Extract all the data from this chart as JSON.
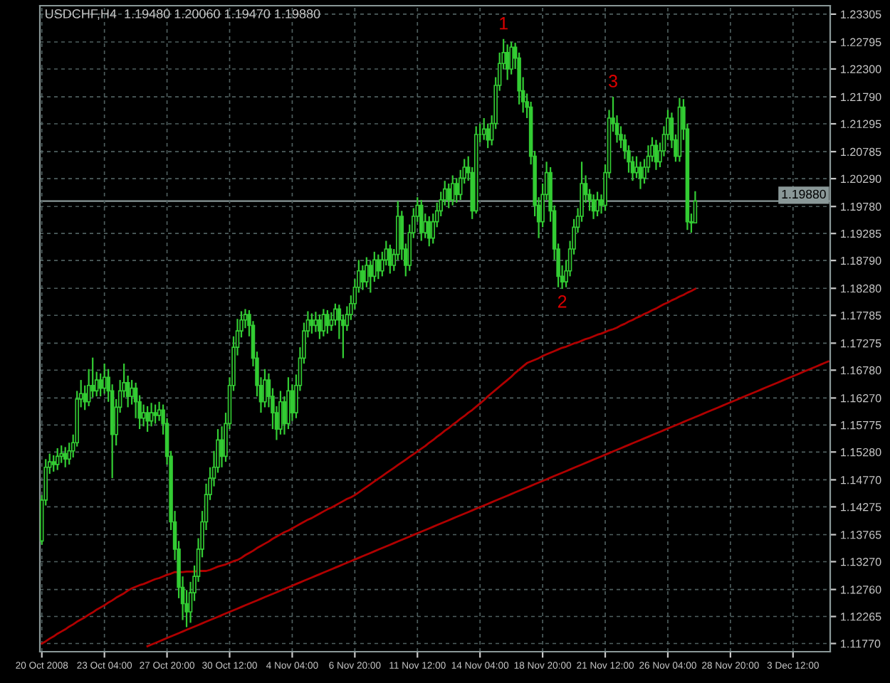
{
  "chart_data": {
    "type": "candlestick",
    "title": "USDCHF,H4  1.19480 1.20060 1.19470 1.19880",
    "color": "#33cc33",
    "categories": [
      "20 Oct 2008",
      null,
      null,
      null,
      null,
      null,
      null,
      null,
      null,
      null,
      null,
      null,
      null,
      null,
      null,
      null,
      "23 Oct 04:00",
      null,
      null,
      null,
      null,
      null,
      null,
      null,
      null,
      null,
      null,
      null,
      null,
      null,
      null,
      null,
      "27 Oct 20:00",
      null,
      null,
      null,
      null,
      null,
      null,
      null,
      null,
      null,
      null,
      null,
      null,
      null,
      null,
      null,
      "30 Oct 12:00",
      null,
      null,
      null,
      null,
      null,
      null,
      null,
      null,
      null,
      null,
      null,
      null,
      null,
      null,
      null,
      "4 Nov 04:00",
      null,
      null,
      null,
      null,
      null,
      null,
      null,
      null,
      null,
      null,
      null,
      null,
      null,
      null,
      null,
      "6 Nov 20:00",
      null,
      null,
      null,
      null,
      null,
      null,
      null,
      null,
      null,
      null,
      null,
      null,
      null,
      null,
      null,
      "11 Nov 12:00",
      null,
      null,
      null,
      null,
      null,
      null,
      null,
      null,
      null,
      null,
      null,
      null,
      null,
      null,
      null,
      "14 Nov 04:00",
      null,
      null,
      null,
      null,
      null,
      null,
      null,
      null,
      null,
      null,
      null,
      null,
      null,
      null,
      null,
      "18 Nov 20:00",
      null,
      null,
      null,
      null,
      null,
      null,
      null,
      null,
      null,
      null,
      null,
      null,
      null,
      null,
      null,
      "21 Nov 12:00",
      null,
      null,
      null,
      null,
      null,
      null,
      null,
      null,
      null,
      null,
      null,
      null,
      null,
      null,
      null,
      "26 Nov 04:00",
      null,
      null,
      null,
      null,
      null,
      null,
      null,
      null,
      null,
      null,
      null,
      null,
      null,
      null,
      null,
      "28 Nov 20:00",
      null,
      null,
      null,
      null,
      null,
      null,
      null,
      null,
      null,
      null,
      null,
      null,
      null,
      null,
      null,
      "3 Dec 12:00",
      null,
      null,
      null,
      null,
      null,
      null,
      null,
      null,
      null
    ],
    "ohlc": [
      [
        1.1365,
        1.1449,
        1.1358,
        1.144
      ],
      [
        1.144,
        1.1515,
        1.143,
        1.15
      ],
      [
        1.15,
        1.1525,
        1.1488,
        1.151
      ],
      [
        1.151,
        1.1522,
        1.1492,
        1.1505
      ],
      [
        1.1505,
        1.1535,
        1.1495,
        1.152
      ],
      [
        1.152,
        1.154,
        1.1508,
        1.1525
      ],
      [
        1.1525,
        1.1537,
        1.15,
        1.1515
      ],
      [
        1.1515,
        1.1545,
        1.1505,
        1.153
      ],
      [
        1.153,
        1.156,
        1.1518,
        1.1545
      ],
      [
        1.1545,
        1.164,
        1.1538,
        1.1625
      ],
      [
        1.1625,
        1.166,
        1.161,
        1.1635
      ],
      [
        1.1635,
        1.165,
        1.1605,
        1.162
      ],
      [
        1.162,
        1.168,
        1.1612,
        1.165
      ],
      [
        1.165,
        1.1701,
        1.1628,
        1.164
      ],
      [
        1.164,
        1.1675,
        1.163,
        1.166
      ],
      [
        1.166,
        1.1672,
        1.163,
        1.1645
      ],
      [
        1.1645,
        1.169,
        1.1635,
        1.1665
      ],
      [
        1.1665,
        1.168,
        1.162,
        1.164
      ],
      [
        1.164,
        1.1652,
        1.148,
        1.156
      ],
      [
        1.156,
        1.1625,
        1.154,
        1.161
      ],
      [
        1.161,
        1.166,
        1.16,
        1.164
      ],
      [
        1.164,
        1.169,
        1.1628,
        1.1655
      ],
      [
        1.1655,
        1.1668,
        1.161,
        1.163
      ],
      [
        1.163,
        1.166,
        1.1615,
        1.1645
      ],
      [
        1.1645,
        1.1655,
        1.159,
        1.162
      ],
      [
        1.162,
        1.1632,
        1.157,
        1.159
      ],
      [
        1.159,
        1.1615,
        1.1575,
        1.16
      ],
      [
        1.16,
        1.1612,
        1.1565,
        1.1585
      ],
      [
        1.1585,
        1.1618,
        1.1575,
        1.16
      ],
      [
        1.16,
        1.1615,
        1.158,
        1.1595
      ],
      [
        1.1595,
        1.162,
        1.1585,
        1.1605
      ],
      [
        1.1605,
        1.1615,
        1.156,
        1.158
      ],
      [
        1.158,
        1.159,
        1.1505,
        1.152
      ],
      [
        1.152,
        1.153,
        1.1385,
        1.14
      ],
      [
        1.14,
        1.142,
        1.133,
        1.135
      ],
      [
        1.135,
        1.1365,
        1.126,
        1.128
      ],
      [
        1.128,
        1.13,
        1.122,
        1.125
      ],
      [
        1.125,
        1.1275,
        1.1207,
        1.1235
      ],
      [
        1.1235,
        1.129,
        1.1215,
        1.127
      ],
      [
        1.127,
        1.132,
        1.1255,
        1.13
      ],
      [
        1.13,
        1.137,
        1.129,
        1.135
      ],
      [
        1.135,
        1.142,
        1.1335,
        1.14
      ],
      [
        1.14,
        1.147,
        1.1385,
        1.145
      ],
      [
        1.145,
        1.15,
        1.144,
        1.148
      ],
      [
        1.148,
        1.153,
        1.1465,
        1.15
      ],
      [
        1.15,
        1.157,
        1.149,
        1.155
      ],
      [
        1.155,
        1.1575,
        1.15,
        1.152
      ],
      [
        1.152,
        1.16,
        1.151,
        1.158
      ],
      [
        1.158,
        1.1665,
        1.157,
        1.165
      ],
      [
        1.165,
        1.174,
        1.164,
        1.172
      ],
      [
        1.172,
        1.1772,
        1.1705,
        1.175
      ],
      [
        1.175,
        1.1786,
        1.1738,
        1.177
      ],
      [
        1.177,
        1.179,
        1.1755,
        1.178
      ],
      [
        1.178,
        1.1788,
        1.174,
        1.176
      ],
      [
        1.176,
        1.1768,
        1.1685,
        1.17
      ],
      [
        1.17,
        1.1712,
        1.163,
        1.165
      ],
      [
        1.165,
        1.1665,
        1.16,
        1.162
      ],
      [
        1.162,
        1.168,
        1.161,
        1.166
      ],
      [
        1.166,
        1.1672,
        1.161,
        1.163
      ],
      [
        1.163,
        1.1645,
        1.157,
        1.16
      ],
      [
        1.16,
        1.1612,
        1.155,
        1.157
      ],
      [
        1.157,
        1.164,
        1.156,
        1.162
      ],
      [
        1.162,
        1.163,
        1.156,
        1.158
      ],
      [
        1.158,
        1.1665,
        1.157,
        1.164
      ],
      [
        1.164,
        1.1652,
        1.1585,
        1.16
      ],
      [
        1.16,
        1.167,
        1.159,
        1.165
      ],
      [
        1.165,
        1.172,
        1.164,
        1.17
      ],
      [
        1.17,
        1.1765,
        1.169,
        1.175
      ],
      [
        1.175,
        1.1786,
        1.1738,
        1.177
      ],
      [
        1.177,
        1.1782,
        1.1745,
        1.176
      ],
      [
        1.176,
        1.1785,
        1.1748,
        1.177
      ],
      [
        1.177,
        1.178,
        1.1735,
        1.175
      ],
      [
        1.175,
        1.179,
        1.174,
        1.178
      ],
      [
        1.178,
        1.1788,
        1.1745,
        1.176
      ],
      [
        1.176,
        1.1784,
        1.175,
        1.177
      ],
      [
        1.177,
        1.18,
        1.176,
        1.179
      ],
      [
        1.179,
        1.1798,
        1.1735,
        1.177
      ],
      [
        1.177,
        1.178,
        1.17,
        1.176
      ],
      [
        1.176,
        1.1795,
        1.175,
        1.178
      ],
      [
        1.178,
        1.1815,
        1.177,
        1.18
      ],
      [
        1.18,
        1.1845,
        1.179,
        1.183
      ],
      [
        1.183,
        1.188,
        1.182,
        1.186
      ],
      [
        1.186,
        1.187,
        1.1825,
        1.184
      ],
      [
        1.184,
        1.1885,
        1.183,
        1.187
      ],
      [
        1.187,
        1.1878,
        1.182,
        1.185
      ],
      [
        1.185,
        1.1895,
        1.184,
        1.188
      ],
      [
        1.188,
        1.189,
        1.1845,
        1.186
      ],
      [
        1.186,
        1.1895,
        1.185,
        1.188
      ],
      [
        1.188,
        1.1915,
        1.187,
        1.19
      ],
      [
        1.19,
        1.1908,
        1.1855,
        1.187
      ],
      [
        1.187,
        1.19,
        1.186,
        1.189
      ],
      [
        1.189,
        1.1988,
        1.188,
        1.196
      ],
      [
        1.196,
        1.197,
        1.188,
        1.19
      ],
      [
        1.19,
        1.191,
        1.185,
        1.187
      ],
      [
        1.187,
        1.1945,
        1.186,
        1.193
      ],
      [
        1.193,
        1.1975,
        1.192,
        1.196
      ],
      [
        1.196,
        1.1995,
        1.195,
        1.198
      ],
      [
        1.198,
        1.199,
        1.1915,
        1.193
      ],
      [
        1.193,
        1.1965,
        1.192,
        1.195
      ],
      [
        1.195,
        1.196,
        1.1905,
        1.192
      ],
      [
        1.192,
        1.1965,
        1.191,
        1.195
      ],
      [
        1.195,
        1.1985,
        1.194,
        1.197
      ],
      [
        1.197,
        1.2005,
        1.196,
        1.199
      ],
      [
        1.199,
        1.2025,
        1.198,
        1.201
      ],
      [
        1.201,
        1.202,
        1.1975,
        1.199
      ],
      [
        1.199,
        1.2035,
        1.198,
        1.202
      ],
      [
        1.202,
        1.203,
        1.1985,
        1.2
      ],
      [
        1.2,
        1.2045,
        1.199,
        1.203
      ],
      [
        1.203,
        1.2065,
        1.202,
        1.205
      ],
      [
        1.205,
        1.207,
        1.2025,
        1.204
      ],
      [
        1.204,
        1.205,
        1.1955,
        1.197
      ],
      [
        1.197,
        1.2125,
        1.1965,
        1.211
      ],
      [
        1.211,
        1.213,
        1.2095,
        1.211
      ],
      [
        1.211,
        1.214,
        1.21,
        1.212
      ],
      [
        1.212,
        1.213,
        1.2085,
        1.21
      ],
      [
        1.21,
        1.2145,
        1.209,
        1.213
      ],
      [
        1.213,
        1.2215,
        1.212,
        1.22
      ],
      [
        1.22,
        1.226,
        1.219,
        1.224
      ],
      [
        1.224,
        1.2285,
        1.223,
        1.226
      ],
      [
        1.226,
        1.2275,
        1.221,
        1.223
      ],
      [
        1.223,
        1.228,
        1.222,
        1.227
      ],
      [
        1.227,
        1.2278,
        1.223,
        1.225
      ],
      [
        1.225,
        1.226,
        1.2165,
        1.219
      ],
      [
        1.219,
        1.2215,
        1.215,
        1.217
      ],
      [
        1.217,
        1.2185,
        1.214,
        1.216
      ],
      [
        1.216,
        1.217,
        1.2055,
        1.207
      ],
      [
        1.207,
        1.208,
        1.196,
        1.198
      ],
      [
        1.198,
        1.1995,
        1.192,
        1.195
      ],
      [
        1.195,
        1.202,
        1.194,
        1.2
      ],
      [
        1.2,
        1.206,
        1.199,
        1.204
      ],
      [
        1.204,
        1.205,
        1.195,
        1.197
      ],
      [
        1.197,
        1.198,
        1.188,
        1.19
      ],
      [
        1.19,
        1.191,
        1.183,
        1.185
      ],
      [
        1.185,
        1.187,
        1.1827,
        1.184
      ],
      [
        1.184,
        1.188,
        1.183,
        1.186
      ],
      [
        1.186,
        1.1915,
        1.185,
        1.19
      ],
      [
        1.19,
        1.1955,
        1.189,
        1.194
      ],
      [
        1.194,
        1.1975,
        1.193,
        1.196
      ],
      [
        1.196,
        1.206,
        1.195,
        1.202
      ],
      [
        1.202,
        1.2035,
        1.1985,
        1.2
      ],
      [
        1.2,
        1.201,
        1.197,
        1.199
      ],
      [
        1.199,
        1.2,
        1.1955,
        1.197
      ],
      [
        1.197,
        1.2005,
        1.196,
        1.199
      ],
      [
        1.199,
        1.2,
        1.1965,
        1.198
      ],
      [
        1.198,
        1.2055,
        1.197,
        1.204
      ],
      [
        1.204,
        1.2155,
        1.203,
        1.214
      ],
      [
        1.214,
        1.2179,
        1.2115,
        1.213
      ],
      [
        1.213,
        1.2145,
        1.2095,
        1.211
      ],
      [
        1.211,
        1.2125,
        1.2085,
        1.21
      ],
      [
        1.21,
        1.211,
        1.2065,
        1.208
      ],
      [
        1.208,
        1.209,
        1.204,
        1.206
      ],
      [
        1.206,
        1.207,
        1.2025,
        1.204
      ],
      [
        1.204,
        1.207,
        1.203,
        1.205
      ],
      [
        1.205,
        1.206,
        1.201,
        1.203
      ],
      [
        1.203,
        1.2065,
        1.202,
        1.205
      ],
      [
        1.205,
        1.209,
        1.204,
        1.207
      ],
      [
        1.207,
        1.2105,
        1.206,
        1.209
      ],
      [
        1.209,
        1.21,
        1.2045,
        1.206
      ],
      [
        1.206,
        1.2095,
        1.205,
        1.208
      ],
      [
        1.208,
        1.2125,
        1.207,
        1.211
      ],
      [
        1.211,
        1.2155,
        1.21,
        1.214
      ],
      [
        1.214,
        1.215,
        1.2085,
        1.21
      ],
      [
        1.21,
        1.211,
        1.206,
        1.207
      ],
      [
        1.207,
        1.2177,
        1.206,
        1.216
      ],
      [
        1.216,
        1.2175,
        1.21,
        1.212
      ],
      [
        1.212,
        1.213,
        1.1935,
        1.195
      ],
      [
        1.195,
        1.1965,
        1.193,
        1.1948
      ],
      [
        1.1948,
        1.2006,
        1.1947,
        1.1988
      ],
      null,
      null,
      null,
      null,
      null,
      null,
      null,
      null,
      null,
      null,
      null,
      null,
      null,
      null,
      null,
      null,
      null,
      null,
      null,
      null,
      null,
      null,
      null,
      null,
      null,
      null,
      null,
      null,
      null,
      null,
      null,
      null,
      null,
      null
    ],
    "series": [
      {
        "type": "line",
        "color": "#b00000",
        "values": [
          1.1177,
          1.1181,
          1.1186,
          1.119,
          1.1195,
          1.1199,
          1.1203,
          1.1208,
          1.1212,
          1.1217,
          1.1221,
          1.1225,
          1.123,
          1.1234,
          1.1239,
          1.1243,
          1.1247,
          1.1252,
          1.1256,
          1.1261,
          1.1265,
          1.1269,
          1.1274,
          1.1278,
          1.1281,
          1.1284,
          1.1286,
          1.1289,
          1.1292,
          1.1295,
          1.1297,
          1.13,
          1.1303,
          1.1305,
          1.1308,
          1.1308,
          1.1308,
          1.1309,
          1.1309,
          1.1309,
          1.131,
          1.131,
          1.131,
          1.1312,
          1.1315,
          1.1318,
          1.132,
          1.1322,
          1.1325,
          1.1328,
          1.133,
          1.1334,
          1.1339,
          1.1343,
          1.1347,
          1.1352,
          1.1356,
          1.136,
          1.1364,
          1.1369,
          1.1373,
          1.1377,
          1.1381,
          1.1384,
          1.1388,
          1.1392,
          1.1396,
          1.14,
          1.1404,
          1.1407,
          1.1411,
          1.1415,
          1.1419,
          1.1423,
          1.1426,
          1.143,
          1.1434,
          1.1438,
          1.1442,
          1.1445,
          1.1449,
          1.1454,
          1.1459,
          1.1464,
          1.1469,
          1.1474,
          1.1479,
          1.1484,
          1.1489,
          1.1494,
          1.1499,
          1.1504,
          1.1509,
          1.1514,
          1.1519,
          1.1524,
          1.1529,
          1.1534,
          1.1539,
          1.1545,
          1.155,
          1.1556,
          1.1561,
          1.1567,
          1.1572,
          1.1578,
          1.1583,
          1.1589,
          1.1594,
          1.16,
          1.1605,
          1.1611,
          1.1617,
          1.1623,
          1.163,
          1.1636,
          1.1642,
          1.1648,
          1.1654,
          1.166,
          1.1666,
          1.1673,
          1.1679,
          1.1685,
          1.1691,
          1.1694,
          1.1697,
          1.17,
          1.1704,
          1.1707,
          1.171,
          1.1713,
          1.1716,
          1.1719,
          1.1721,
          1.1724,
          1.1727,
          1.1729,
          1.1732,
          1.1735,
          1.1737,
          1.174,
          1.1743,
          1.1745,
          1.1748,
          1.1751,
          1.1753,
          1.1756,
          1.176,
          1.1763,
          1.1767,
          1.177,
          1.1774,
          1.1777,
          1.1781,
          1.1784,
          1.1788,
          1.1791,
          1.1795,
          1.1799,
          1.1802,
          1.1806,
          1.1809,
          1.1813,
          1.1816,
          1.182,
          1.1823,
          1.1827,
          null,
          null,
          null,
          null,
          null,
          null,
          null,
          null,
          null,
          null,
          null,
          null,
          null,
          null,
          null,
          null,
          null,
          null,
          null,
          null,
          null,
          null,
          null,
          null,
          null,
          null,
          null,
          null,
          null,
          null,
          null,
          null,
          null,
          null
        ]
      },
      {
        "type": "line",
        "color": "#b00000",
        "values": [
          null,
          null,
          null,
          null,
          null,
          null,
          null,
          null,
          null,
          null,
          null,
          null,
          null,
          null,
          null,
          null,
          null,
          null,
          null,
          null,
          null,
          null,
          null,
          null,
          null,
          null,
          null,
          1.1172,
          1.1175,
          1.1178,
          1.1181,
          1.1184,
          1.1187,
          1.119,
          1.1193,
          1.1196,
          1.1199,
          1.1202,
          1.1205,
          1.1208,
          1.1211,
          1.1214,
          1.1217,
          1.122,
          1.1223,
          1.1226,
          1.1229,
          1.1232,
          1.1235,
          1.1238,
          1.1241,
          1.1244,
          1.1247,
          1.125,
          1.1253,
          1.1256,
          1.1259,
          1.1262,
          1.1265,
          1.1268,
          1.1271,
          1.1274,
          1.1277,
          1.128,
          1.1283,
          1.1286,
          1.1289,
          1.1292,
          1.1295,
          1.1298,
          1.1301,
          1.1304,
          1.1307,
          1.131,
          1.1313,
          1.1316,
          1.1319,
          1.1322,
          1.1325,
          1.1328,
          1.1331,
          1.1334,
          1.1337,
          1.134,
          1.1343,
          1.1346,
          1.1349,
          1.1352,
          1.1355,
          1.1358,
          1.1361,
          1.1364,
          1.1367,
          1.137,
          1.1373,
          1.1376,
          1.1379,
          1.1382,
          1.1385,
          1.1388,
          1.1391,
          1.1394,
          1.1397,
          1.14,
          1.1403,
          1.1406,
          1.1409,
          1.1412,
          1.1415,
          1.1418,
          1.1421,
          1.1424,
          1.1427,
          1.143,
          1.1433,
          1.1436,
          1.1439,
          1.1442,
          1.1445,
          1.1448,
          1.1451,
          1.1454,
          1.1457,
          1.146,
          1.1463,
          1.1466,
          1.1469,
          1.1472,
          1.1475,
          1.1478,
          1.1481,
          1.1484,
          1.1487,
          1.149,
          1.1493,
          1.1496,
          1.1499,
          1.1502,
          1.1505,
          1.1508,
          1.1511,
          1.1514,
          1.1517,
          1.152,
          1.1523,
          1.1526,
          1.1529,
          1.1532,
          1.1535,
          1.1538,
          1.1541,
          1.1544,
          1.1547,
          1.155,
          1.1553,
          1.1556,
          1.1559,
          1.1562,
          1.1565,
          1.1568,
          1.1571,
          1.1574,
          1.1577,
          1.158,
          1.1583,
          1.1586,
          1.1589,
          1.1592,
          1.1595,
          1.1598,
          1.1601,
          1.1604,
          1.1607,
          1.161,
          1.1613,
          1.1616,
          1.1619,
          1.1622,
          1.1625,
          1.1628,
          1.1631,
          1.1634,
          1.1637,
          1.164,
          1.1643,
          1.1646,
          1.1649,
          1.1652,
          1.1655,
          1.1658,
          1.1661,
          1.1664,
          1.1667,
          1.167,
          1.1673,
          1.1676,
          1.1679,
          1.1682,
          1.1685,
          1.1688,
          1.1691,
          1.1694
        ]
      }
    ],
    "ylim": [
      1.1162,
      1.2346
    ],
    "yticks": [
      {
        "value": 1.23305,
        "label": "1.23305"
      },
      {
        "value": 1.22795,
        "label": "1.22795"
      },
      {
        "value": 1.223,
        "label": "1.22300"
      },
      {
        "value": 1.2179,
        "label": "1.21790"
      },
      {
        "value": 1.21295,
        "label": "1.21295"
      },
      {
        "value": 1.20785,
        "label": "1.20785"
      },
      {
        "value": 1.2029,
        "label": "1.20290"
      },
      {
        "value": 1.1978,
        "label": "1.19780"
      },
      {
        "value": 1.19285,
        "label": "1.19285"
      },
      {
        "value": 1.1879,
        "label": "1.18790"
      },
      {
        "value": 1.1828,
        "label": "1.18280"
      },
      {
        "value": 1.17785,
        "label": "1.17785"
      },
      {
        "value": 1.17275,
        "label": "1.17275"
      },
      {
        "value": 1.1678,
        "label": "1.16780"
      },
      {
        "value": 1.1627,
        "label": "1.16270"
      },
      {
        "value": 1.15775,
        "label": "1.15775"
      },
      {
        "value": 1.1528,
        "label": "1.15280"
      },
      {
        "value": 1.1477,
        "label": "1.14770"
      },
      {
        "value": 1.14275,
        "label": "1.14275"
      },
      {
        "value": 1.13765,
        "label": "1.13765"
      },
      {
        "value": 1.1327,
        "label": "1.13270"
      },
      {
        "value": 1.1276,
        "label": "1.12760"
      },
      {
        "value": 1.12265,
        "label": "1.12265"
      },
      {
        "value": 1.1177,
        "label": "1.11770"
      }
    ],
    "ref_lines": [
      {
        "axis": "y",
        "value": 1.1988,
        "label": "1.19880",
        "color": "#8a9898"
      }
    ],
    "annotations": [
      {
        "text": "1",
        "y": 1.2285
      },
      {
        "text": "2",
        "y": 1.1827
      },
      {
        "text": "3",
        "y": 1.2179
      }
    ],
    "grid": true
  }
}
